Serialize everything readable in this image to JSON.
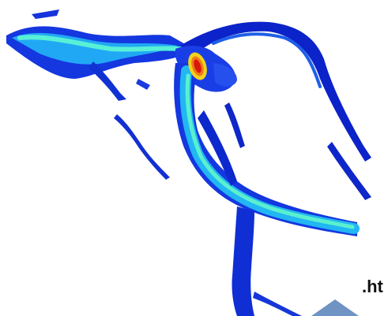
{
  "figure": {
    "fragment_text": ".ht",
    "colors": {
      "background": "#ffffff",
      "channel_deep": "#0b1fd6",
      "channel_mid": "#1e6bff",
      "flow_low": "#2bd0f5",
      "flow_mid": "#59f2c8",
      "flow_high": "#f2d21a",
      "flow_peak": "#e02010",
      "corner_fill": "#6f93c2",
      "text": "#111111"
    },
    "icons": {
      "corner": "triangle-shape"
    }
  }
}
